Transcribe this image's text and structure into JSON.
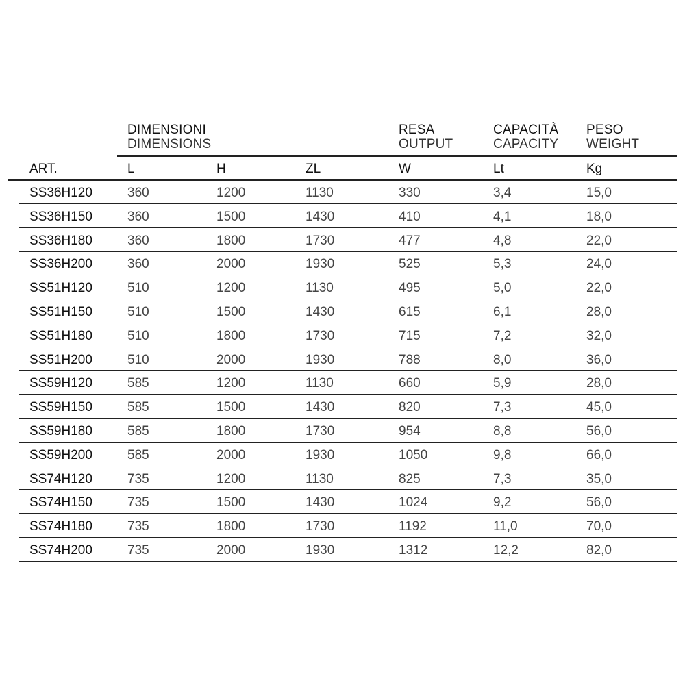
{
  "groups": [
    {
      "it": "DIMENSIONI",
      "en": "DIMENSIONS"
    },
    {
      "it": "RESA",
      "en": "OUTPUT"
    },
    {
      "it": "CAPACITÀ",
      "en": "CAPACITY"
    },
    {
      "it": "PESO",
      "en": "WEIGHT"
    }
  ],
  "columns": [
    "ART.",
    "L",
    "H",
    "ZL",
    "W",
    "Lt",
    "Kg"
  ],
  "rows": [
    [
      "SS36H120",
      "360",
      "1200",
      "1130",
      "330",
      "3,4",
      "15,0"
    ],
    [
      "SS36H150",
      "360",
      "1500",
      "1430",
      "410",
      "4,1",
      "18,0"
    ],
    [
      "SS36H180",
      "360",
      "1800",
      "1730",
      "477",
      "4,8",
      "22,0"
    ],
    [
      "SS36H200",
      "360",
      "2000",
      "1930",
      "525",
      "5,3",
      "24,0"
    ],
    [
      "SS51H120",
      "510",
      "1200",
      "1130",
      "495",
      "5,0",
      "22,0"
    ],
    [
      "SS51H150",
      "510",
      "1500",
      "1430",
      "615",
      "6,1",
      "28,0"
    ],
    [
      "SS51H180",
      "510",
      "1800",
      "1730",
      "715",
      "7,2",
      "32,0"
    ],
    [
      "SS51H200",
      "510",
      "2000",
      "1930",
      "788",
      "8,0",
      "36,0"
    ],
    [
      "SS59H120",
      "585",
      "1200",
      "1130",
      "660",
      "5,9",
      "28,0"
    ],
    [
      "SS59H150",
      "585",
      "1500",
      "1430",
      "820",
      "7,3",
      "45,0"
    ],
    [
      "SS59H180",
      "585",
      "1800",
      "1730",
      "954",
      "8,8",
      "56,0"
    ],
    [
      "SS59H200",
      "585",
      "2000",
      "1930",
      "1050",
      "9,8",
      "66,0"
    ],
    [
      "SS74H120",
      "735",
      "1200",
      "1130",
      "825",
      "7,3",
      "35,0"
    ],
    [
      "SS74H150",
      "735",
      "1500",
      "1430",
      "1024",
      "9,2",
      "56,0"
    ],
    [
      "SS74H180",
      "735",
      "1800",
      "1730",
      "1192",
      "11,0",
      "70,0"
    ],
    [
      "SS74H200",
      "735",
      "2000",
      "1930",
      "1312",
      "12,2",
      "82,0"
    ]
  ]
}
